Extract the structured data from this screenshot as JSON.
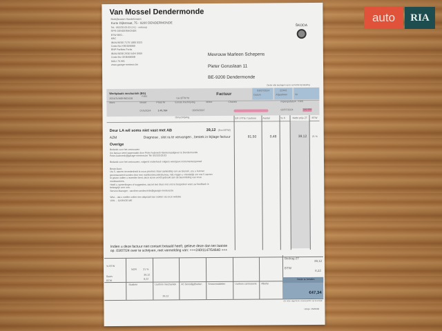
{
  "watermark": {
    "part1": "auto",
    "part2": "RIA",
    "color1": "#e0523a",
    "color2": "#1e4d50"
  },
  "company": {
    "name": "Van Mossel Dendermonde",
    "subtitle": "Bedrijfsnaam Handelsnaam",
    "address": "Korte Dijkstraat, 75 - 9200 DENDERMONDE",
    "lines": [
      "Tel.: 052/20.03.03 (VL) - verkoop",
      "RPR DENDERMONDE",
      "BTW BE0...",
      "KBC",
      "IBAN BE00 7170 1080 0323",
      "Code Bic KREDBEBB",
      "BNP Paribas Fortis",
      "IBAN BE58 2930 5454 0909",
      "Code Bic GEBABEBB",
      "MAU 75.961",
      "www.garage-mertens.be"
    ],
    "brand": "ŠKODA"
  },
  "recipient": {
    "name": "Mevrouw Marleen Schepens",
    "street": "Pieter Goruslaan 11",
    "city": "BE-9200 Dendermonde"
  },
  "header": {
    "note": "Onder alle bedragen op te correctie bij betaling",
    "workshop": "Werkplaats mechaniek (BG)",
    "folio": "Folio",
    "btw_nr": "Uw BTW Nr",
    "title": "Factuur",
    "date": "03/07/2024",
    "date_label": "Datum",
    "number": "22443",
    "number_label": "Afgesloten",
    "ref": "2024/3VW8HN03438",
    "ref_label": "Nr"
  },
  "vehicle": {
    "labels": [
      "Merk",
      "Model",
      "Plaat Nr",
      "Eerste inschrijving",
      "Motor",
      "Chassis",
      "Ingangsdatum",
      "KMS"
    ],
    "values": [
      "",
      "07/6/2024",
      "1-PL784",
      "05/03/2007",
      "",
      "",
      "02/07/2024",
      "209.356"
    ]
  },
  "columns": {
    "description": "Omschrijving",
    "ep": "EP / PTN / Uurloon",
    "qty": "Aantal",
    "disc": "% K",
    "net": "Netto prijs ZT",
    "btw": "BTW"
  },
  "lines": [
    {
      "title": "Deur LA wil soms niet vast met AB",
      "amount": "39,12",
      "amount_note": "(Excl.BTW)"
    },
    {
      "code": "AZM",
      "text": "Diagnose , slot ra te vervangen , bestek in bijlage factuur",
      "price": "81,50",
      "qty": "0,48",
      "net": "39,12",
      "btw": "21 %"
    }
  ],
  "other": {
    "title": "Overige",
    "paragraphs": [
      "Bedankt voor het vertrouwen",
      "Uw factuur werd opgemaakt door Peter Aubroeck klantenraadgever te Dendermonde",
      "Peter.Aubroeck@garage-mertens.be Tel: 052/20.03.03",
      "Bedankt voor het vertrouwen, volgend onderhoud volgens weergave instrumentenpaneel",
      "Beste klant,",
      "Uw 5- sterren tevredenheid is onze prioriteit. Naar aanleiding van uw bezoek, zou u kunnen",
      "gecontacteerd worden door een marktonderzoeksbureau. Wij vragen u vriendelijk om ons 5 sterren",
      "te geven indien u tevreden bent, deze score wordt gebruikt aan de beoordeling van onze",
      "medewerkers.",
      "Heeft u opmerkingen of suggesties, aarzel niet deze met ons te bespreken want uw feedback is",
      "belangrijk voor ons.",
      "Service Manager : caroline.vandevonde@garage-mertens.be",
      "Wist... dat u sneller online een afspraak kan maken via onze website",
      "VAN ... GARAGE.ME"
    ]
  },
  "payment": {
    "line1": "Indien u deze factuur niet contant betaald heeft, gelieve deze dan ten laatste",
    "line2": "op. 03/07/24 over te schrijven, met vermelding van: +++240/1147/54640 +++"
  },
  "summary": {
    "pct_btw": "% BTW",
    "nor": "NOR",
    "rate": "21 %",
    "basis_label": "Basis",
    "basis": "39,12",
    "btw_label": "BTW",
    "btw": "8,22",
    "cols": [
      "Stukken",
      "Uurloon mechaniek",
      "Af. benodigdheden",
      "Smeermiddelen",
      "Uurloon carrosserie",
      "Allerlei"
    ],
    "uurloon": "39,12",
    "bedrag_label": "Bedrag ZT",
    "bedrag": "39,12",
    "btw_total_label": "BTW",
    "btw_total": "8,22",
    "total_label": "Netto te betalen",
    "total": "€47,34",
    "footer_note": "Zie onze algemene voorwaarden op keerzijde",
    "page": "Uitvgs: 4M/0000"
  }
}
